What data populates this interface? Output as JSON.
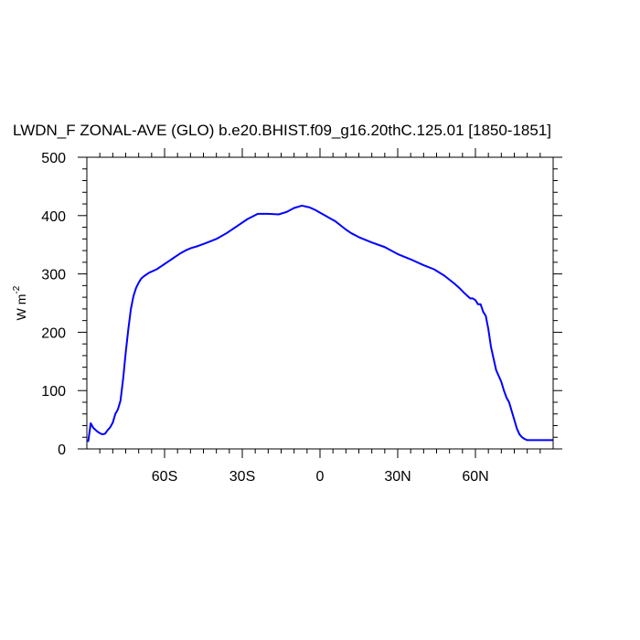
{
  "chart_data": {
    "type": "line",
    "title": "LWDN_F ZONAL-AVE (GLO) b.e20.BHIST.f09_g16.20thC.125.01 [1850-1851]",
    "ylabel": "W m",
    "ylabel_exponent": "-2",
    "xlabel": "",
    "xlim": [
      -90,
      90
    ],
    "ylim": [
      0,
      500
    ],
    "x_major_ticks": [
      -60,
      -30,
      0,
      30,
      60
    ],
    "x_tick_labels": [
      "60S",
      "30S",
      "0",
      "30N",
      "60N"
    ],
    "x_minor_ticks": [
      -85,
      -80,
      -75,
      -70,
      -65,
      -55,
      -50,
      -45,
      -40,
      -35,
      -25,
      -20,
      -15,
      -10,
      -5,
      5,
      10,
      15,
      20,
      25,
      35,
      40,
      45,
      50,
      55,
      65,
      70,
      75,
      80,
      85
    ],
    "y_major_ticks": [
      0,
      100,
      200,
      300,
      400,
      500
    ],
    "y_tick_labels": [
      "0",
      "100",
      "200",
      "300",
      "400",
      "500"
    ],
    "y_minor_ticks": [
      20,
      40,
      60,
      80,
      120,
      140,
      160,
      180,
      220,
      240,
      260,
      280,
      320,
      340,
      360,
      380,
      420,
      440,
      460,
      480
    ],
    "grid": false,
    "line_color": "#0000ff",
    "series": [
      {
        "x": [
          -89.5,
          -88.5,
          -87.5,
          -86,
          -85,
          -84,
          -83,
          -82,
          -81,
          -80,
          -79,
          -78,
          -77,
          -76,
          -75,
          -74,
          -73,
          -72,
          -71,
          -70,
          -69,
          -68,
          -67,
          -66,
          -65,
          -64,
          -63,
          -62,
          -61,
          -60,
          -59,
          -58,
          -57,
          -56,
          -55,
          -54,
          -52,
          -50,
          -47,
          -44,
          -40,
          -36,
          -32,
          -28,
          -24,
          -20,
          -16,
          -13,
          -10,
          -7,
          -4,
          -2,
          0,
          2,
          4,
          6,
          8,
          10,
          12,
          15,
          20,
          25,
          30,
          35,
          40,
          44,
          48,
          50,
          52,
          54,
          56,
          57,
          58,
          59,
          60,
          61,
          62,
          63,
          64,
          65,
          66,
          67,
          68,
          69,
          70,
          71,
          72,
          73,
          74,
          75,
          76,
          77,
          78,
          79,
          80,
          81,
          82,
          83,
          84,
          85,
          86,
          87,
          88,
          89,
          90
        ],
        "y": [
          12,
          44,
          36,
          30,
          27,
          25,
          26,
          32,
          37,
          45,
          60,
          68,
          83,
          120,
          165,
          205,
          240,
          262,
          276,
          285,
          292,
          296,
          299,
          302,
          304,
          306,
          308,
          311,
          314,
          317,
          320,
          323,
          326,
          329,
          332,
          335,
          340,
          344,
          348,
          353,
          360,
          370,
          382,
          394,
          403,
          403,
          402,
          406,
          413,
          417,
          414,
          410,
          405,
          400,
          395,
          390,
          383,
          376,
          370,
          363,
          354,
          346,
          334,
          325,
          315,
          308,
          297,
          290,
          283,
          275,
          266,
          262,
          258,
          258,
          255,
          248,
          248,
          235,
          228,
          205,
          175,
          155,
          135,
          125,
          115,
          100,
          88,
          80,
          65,
          50,
          35,
          25,
          20,
          17,
          15,
          15,
          15,
          15,
          15,
          15,
          15,
          15,
          15,
          15,
          15
        ]
      }
    ]
  }
}
